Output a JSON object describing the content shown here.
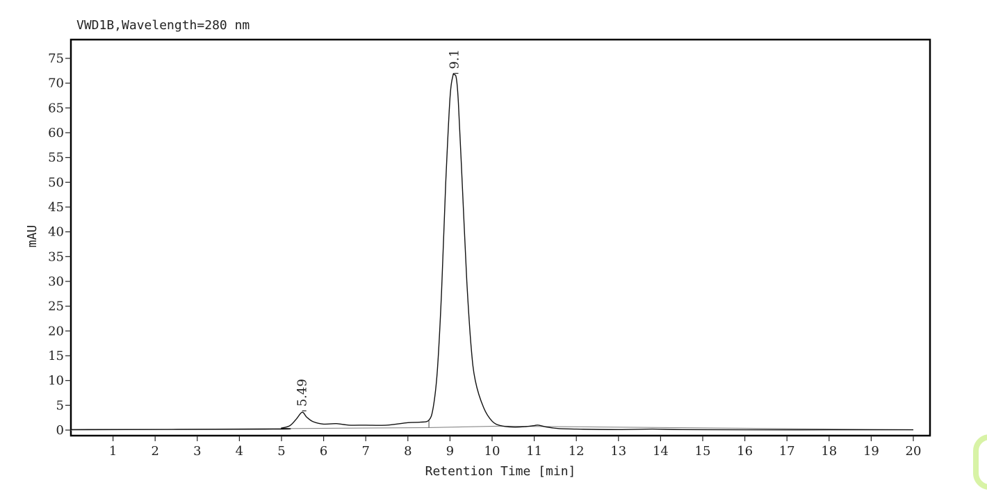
{
  "chart_data": {
    "type": "line",
    "title": "VWD1B,Wavelength=280 nm",
    "xlabel": "Retention Time [min]",
    "ylabel": "mAU",
    "xlim": [
      0,
      20
    ],
    "ylim": [
      0,
      75
    ],
    "x_ticks": [
      "1",
      "2",
      "3",
      "4",
      "5",
      "6",
      "7",
      "8",
      "9",
      "10",
      "11",
      "12",
      "13",
      "14",
      "15",
      "16",
      "17",
      "18",
      "19",
      "20"
    ],
    "y_ticks": [
      "0",
      "5",
      "10",
      "15",
      "20",
      "25",
      "30",
      "35",
      "40",
      "45",
      "50",
      "55",
      "60",
      "65",
      "70",
      "75"
    ],
    "grid": false,
    "series": [
      {
        "x": [
          0,
          4.8,
          5.0,
          5.2,
          5.35,
          5.49,
          5.6,
          5.75,
          6.0,
          6.3,
          6.6,
          7.0,
          7.5,
          8.0,
          8.3,
          8.5,
          8.6,
          8.7,
          8.8,
          8.9,
          9.0,
          9.07,
          9.1,
          9.15,
          9.2,
          9.3,
          9.4,
          9.5,
          9.6,
          9.8,
          10.0,
          10.2,
          10.5,
          10.8,
          11.0,
          11.1,
          11.3,
          11.6,
          12.0,
          13.0,
          13.8,
          14.5,
          16.0,
          18.0,
          20.0
        ],
        "y": [
          0.1,
          0.2,
          0.4,
          0.9,
          2.2,
          3.6,
          2.6,
          1.7,
          1.2,
          1.3,
          1.0,
          1.0,
          1.0,
          1.5,
          1.6,
          2.0,
          4.5,
          12.0,
          28.0,
          50.0,
          67.0,
          71.5,
          71.7,
          71.0,
          66.0,
          48.0,
          30.0,
          17.0,
          10.0,
          4.5,
          1.8,
          0.9,
          0.6,
          0.7,
          0.9,
          1.0,
          0.6,
          0.3,
          0.2,
          0.1,
          0.2,
          0.1,
          0.05,
          0.05,
          0.05
        ]
      }
    ],
    "integration_baselines": [
      {
        "x": [
          0,
          8.5
        ],
        "y": [
          0,
          0.5
        ]
      },
      {
        "x": [
          8.5,
          10.2
        ],
        "y": [
          0.5,
          0.8
        ]
      },
      {
        "x": [
          10.2,
          20
        ],
        "y": [
          0.8,
          0.05
        ]
      }
    ],
    "peak_labels": [
      {
        "text": "5.49",
        "x": 5.49,
        "y": 3.6
      },
      {
        "text": "9.1",
        "x": 9.1,
        "y": 71.7
      }
    ]
  }
}
